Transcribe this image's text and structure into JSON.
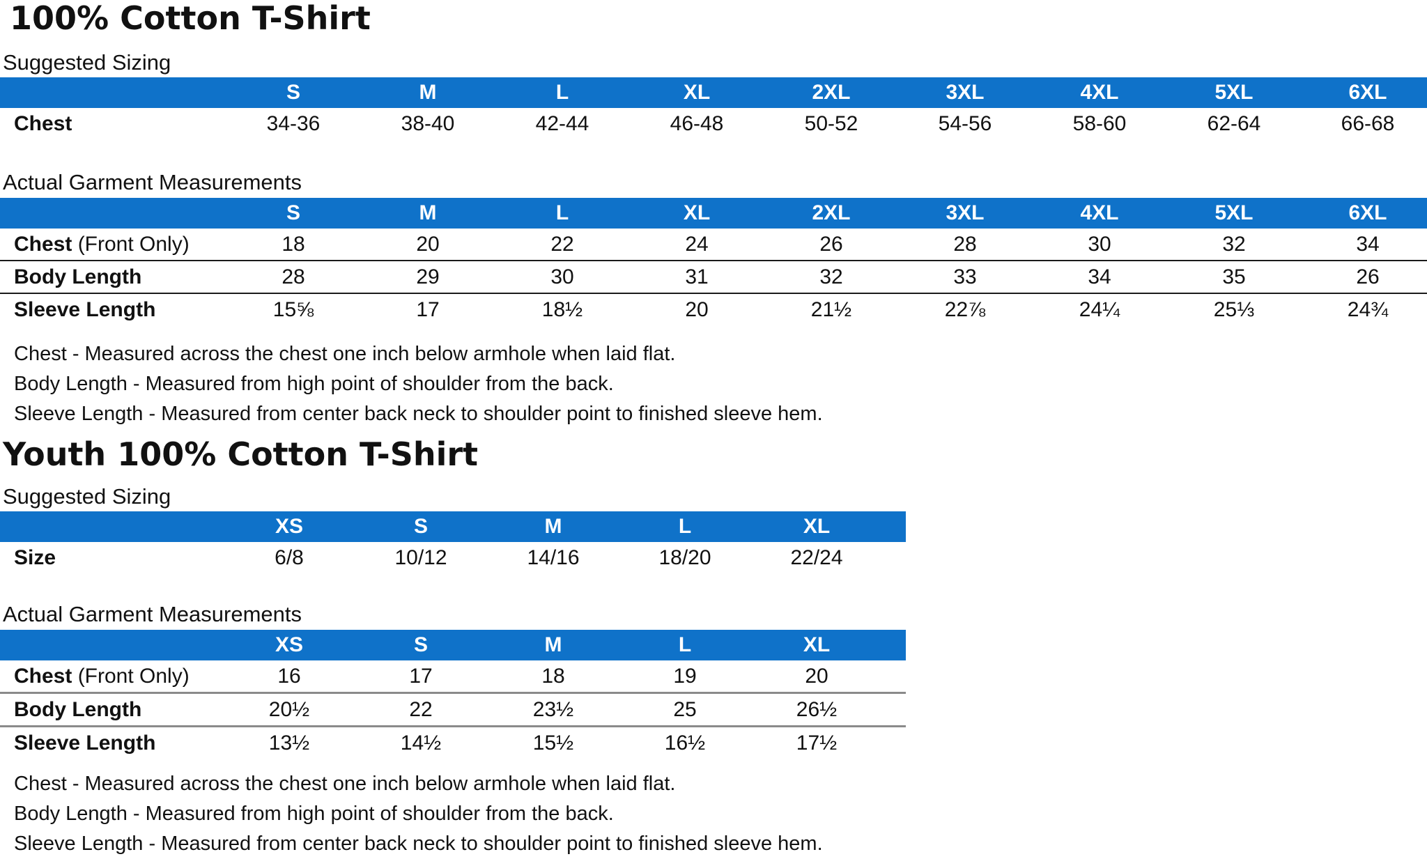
{
  "adult": {
    "title": "100% Cotton T-Shirt",
    "suggested": {
      "heading": "Suggested Sizing",
      "sizes": [
        "S",
        "M",
        "L",
        "XL",
        "2XL",
        "3XL",
        "4XL",
        "5XL",
        "6XL"
      ],
      "rows": [
        {
          "label": "Chest",
          "suffix": "",
          "values": [
            "34-36",
            "38-40",
            "42-44",
            "46-48",
            "50-52",
            "54-56",
            "58-60",
            "62-64",
            "66-68"
          ]
        }
      ]
    },
    "actual": {
      "heading": "Actual Garment Measurements",
      "sizes": [
        "S",
        "M",
        "L",
        "XL",
        "2XL",
        "3XL",
        "4XL",
        "5XL",
        "6XL"
      ],
      "rows": [
        {
          "label": "Chest",
          "suffix": " (Front Only)",
          "values": [
            "18",
            "20",
            "22",
            "24",
            "26",
            "28",
            "30",
            "32",
            "34"
          ]
        },
        {
          "label": "Body Length",
          "suffix": "",
          "values": [
            "28",
            "29",
            "30",
            "31",
            "32",
            "33",
            "34",
            "35",
            "26"
          ]
        },
        {
          "label": "Sleeve Length",
          "suffix": "",
          "values": [
            "15⅝",
            "17",
            "18½",
            "20",
            "21½",
            "22⅞",
            "24¼",
            "25⅓",
            "24¾"
          ]
        }
      ]
    },
    "notes": [
      "Chest - Measured across the chest one inch below armhole when laid flat.",
      "Body Length - Measured from high point of shoulder from the back.",
      "Sleeve Length - Measured from center back neck to shoulder point to finished sleeve hem."
    ]
  },
  "youth": {
    "title": "Youth 100% Cotton T-Shirt",
    "suggested": {
      "heading": "Suggested Sizing",
      "sizes": [
        "XS",
        "S",
        "M",
        "L",
        "XL"
      ],
      "rows": [
        {
          "label": "Size",
          "suffix": "",
          "values": [
            "6/8",
            "10/12",
            "14/16",
            "18/20",
            "22/24"
          ]
        }
      ]
    },
    "actual": {
      "heading": "Actual Garment Measurements",
      "sizes": [
        "XS",
        "S",
        "M",
        "L",
        "XL"
      ],
      "rows": [
        {
          "label": "Chest",
          "suffix": " (Front Only)",
          "values": [
            "16",
            "17",
            "18",
            "19",
            "20"
          ]
        },
        {
          "label": "Body Length",
          "suffix": "",
          "values": [
            "20½",
            "22",
            "23½",
            "25",
            "26½"
          ]
        },
        {
          "label": "Sleeve Length",
          "suffix": "",
          "values": [
            "13½",
            "14½",
            "15½",
            "16½",
            "17½"
          ]
        }
      ]
    },
    "notes": [
      "Chest - Measured across the chest one inch below armhole when laid flat.",
      "Body Length - Measured from high point of shoulder from the back.",
      "Sleeve Length - Measured from center back neck to shoulder point to finished sleeve hem."
    ]
  },
  "colors": {
    "header_blue": "#0f72c9",
    "header_text": "#ffffff",
    "body_text": "#111111"
  }
}
